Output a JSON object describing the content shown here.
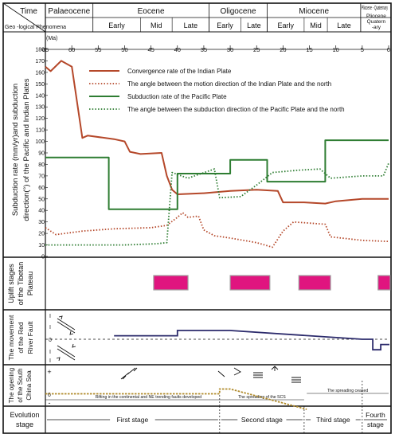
{
  "header": {
    "time_label": "Time",
    "phenomena_label": "Geo -logical Phenomena",
    "ma_label": "(Ma)",
    "epochs": [
      {
        "name": "Palaeocene",
        "start": 65,
        "end": 56
      },
      {
        "name": "Eocene",
        "start": 56,
        "end": 34
      },
      {
        "name": "Oligocene",
        "start": 34,
        "end": 23
      },
      {
        "name": "Miocene",
        "start": 23,
        "end": 5.3
      },
      {
        "name": "Pliocene - Quaternary",
        "start": 5.3,
        "end": 0
      }
    ],
    "subdivisions": [
      {
        "name": "Early",
        "start": 56,
        "end": 47
      },
      {
        "name": "Mid",
        "start": 47,
        "end": 41
      },
      {
        "name": "Late",
        "start": 41,
        "end": 34
      },
      {
        "name": "Early",
        "start": 34,
        "end": 28
      },
      {
        "name": "Late",
        "start": 28,
        "end": 23
      },
      {
        "name": "Early",
        "start": 23,
        "end": 16
      },
      {
        "name": "Mid",
        "start": 16,
        "end": 11.6
      },
      {
        "name": "Late",
        "start": 11.6,
        "end": 5.3
      },
      {
        "name": "Pliocene",
        "start": 5.3,
        "end": 0
      },
      {
        "name": "Quatern",
        "start": 5.3,
        "end": 0
      },
      {
        "name": "-ary",
        "start": 5.3,
        "end": 0
      }
    ]
  },
  "row_labels": {
    "subduction": [
      "Subduction rate  (mm/yr)and subduction",
      "direction(°) of the  Pacific and Indian Plates"
    ],
    "uplift": [
      "Uplift stages",
      "of the Tibetan",
      "Plateau"
    ],
    "red_river": [
      "The movement",
      "of the Red",
      "River Fault"
    ],
    "scs": [
      "The opening",
      "of the South",
      "China Sea"
    ],
    "evolution": [
      "Evolution",
      "stage"
    ]
  },
  "chart_data": {
    "type": "line",
    "x_unit": "Ma",
    "xlim": [
      65,
      0
    ],
    "xticks": [
      65,
      60,
      55,
      50,
      45,
      40,
      35,
      30,
      25,
      20,
      15,
      10,
      5,
      0
    ],
    "ylim": [
      0,
      180
    ],
    "yticks": [
      0,
      10,
      20,
      30,
      40,
      50,
      60,
      70,
      80,
      90,
      100,
      110,
      120,
      130,
      140,
      150,
      160,
      170,
      180
    ],
    "grid": false,
    "legend_position": "top-right",
    "series": [
      {
        "name": "Convergence rate of the Indian Plate",
        "color": "#b5482a",
        "style": "solid",
        "points": [
          [
            65,
            165
          ],
          [
            64,
            161
          ],
          [
            62,
            170
          ],
          [
            60,
            165
          ],
          [
            58,
            103
          ],
          [
            57,
            105
          ],
          [
            52,
            102
          ],
          [
            50,
            100
          ],
          [
            49,
            91
          ],
          [
            47,
            89
          ],
          [
            43,
            90
          ],
          [
            42,
            70
          ],
          [
            41,
            58
          ],
          [
            40,
            54
          ],
          [
            35,
            55
          ],
          [
            30,
            57
          ],
          [
            25,
            58
          ],
          [
            21,
            57
          ],
          [
            20,
            47
          ],
          [
            18,
            47
          ],
          [
            16,
            47
          ],
          [
            12,
            46
          ],
          [
            10,
            48
          ],
          [
            5,
            50
          ],
          [
            0,
            50
          ]
        ]
      },
      {
        "name": "The angle between the motion direction of the Indian Plate and the north",
        "color": "#b5482a",
        "style": "dotted",
        "points": [
          [
            65,
            25
          ],
          [
            63,
            19
          ],
          [
            58,
            22
          ],
          [
            52,
            24
          ],
          [
            45,
            25
          ],
          [
            42,
            27
          ],
          [
            40,
            34
          ],
          [
            39,
            38
          ],
          [
            38,
            34
          ],
          [
            36,
            35
          ],
          [
            35,
            23
          ],
          [
            33,
            18
          ],
          [
            30,
            16
          ],
          [
            25,
            12
          ],
          [
            22,
            8
          ],
          [
            20,
            22
          ],
          [
            18,
            30
          ],
          [
            12,
            28
          ],
          [
            11,
            17
          ],
          [
            5,
            14
          ],
          [
            0,
            13
          ]
        ]
      },
      {
        "name": "Subduction rate of the Pacific Plate",
        "color": "#2e7d32",
        "style": "solid",
        "points": [
          [
            65,
            86
          ],
          [
            53,
            86
          ],
          [
            53,
            41
          ],
          [
            40,
            41
          ],
          [
            40,
            72
          ],
          [
            30,
            72
          ],
          [
            30,
            84
          ],
          [
            23,
            84
          ],
          [
            23,
            65
          ],
          [
            12,
            65
          ],
          [
            12,
            101
          ],
          [
            0,
            101
          ]
        ]
      },
      {
        "name": "The angle between the subduction direction of the Pacific Plate and the north",
        "color": "#2e7d32",
        "style": "dotted",
        "points": [
          [
            65,
            10
          ],
          [
            50,
            10
          ],
          [
            44,
            11
          ],
          [
            42,
            12
          ],
          [
            41,
            73
          ],
          [
            38,
            68
          ],
          [
            33,
            76
          ],
          [
            32,
            51
          ],
          [
            28,
            52
          ],
          [
            25,
            62
          ],
          [
            22,
            73
          ],
          [
            17,
            75
          ],
          [
            13,
            76
          ],
          [
            11,
            68
          ],
          [
            5,
            70
          ],
          [
            1,
            70
          ],
          [
            0,
            81
          ]
        ]
      }
    ]
  },
  "uplift_stages": [
    {
      "start": 44.5,
      "end": 38
    },
    {
      "start": 30,
      "end": 22.5
    },
    {
      "start": 17,
      "end": 11
    },
    {
      "start": 2,
      "end": -1
    }
  ],
  "red_river": {
    "color": "#2b2a6b",
    "points": [
      [
        52,
        0.4
      ],
      [
        40,
        0.4
      ],
      [
        40,
        1
      ],
      [
        30,
        1
      ],
      [
        5,
        0
      ],
      [
        3,
        0
      ],
      [
        3,
        -1.2
      ],
      [
        1.5,
        -1.2
      ],
      [
        1.5,
        -0.6
      ],
      [
        -1,
        -0.6
      ]
    ],
    "axis_marks": [
      "I",
      "I",
      "0",
      "I",
      "I"
    ]
  },
  "scs": {
    "plus_label": "+",
    "minus_label": "-",
    "zero_label": "0",
    "rifting_text": "Rifting in the continental and NE trending faults developed",
    "spreading_text": "The spreading of the SCS",
    "ceased_text": "The spreading ceased",
    "line_color": "#b08a2a",
    "line_points": [
      [
        65,
        0.05
      ],
      [
        32,
        0.05
      ],
      [
        32,
        0.25
      ],
      [
        30,
        0.25
      ],
      [
        15.5,
        -0.6
      ]
    ]
  },
  "evolution": {
    "stages": [
      {
        "name": "First stage",
        "start": 65,
        "end": 32
      },
      {
        "name": "Second stage",
        "start": 32,
        "end": 16
      },
      {
        "name": "Third stage",
        "start": 16,
        "end": 5
      },
      {
        "name": "Fourth stage",
        "start": 5,
        "end": 0
      }
    ]
  },
  "colors": {
    "uplift_fill": "#e0157f",
    "uplift_outline": "#a0a0a0"
  }
}
